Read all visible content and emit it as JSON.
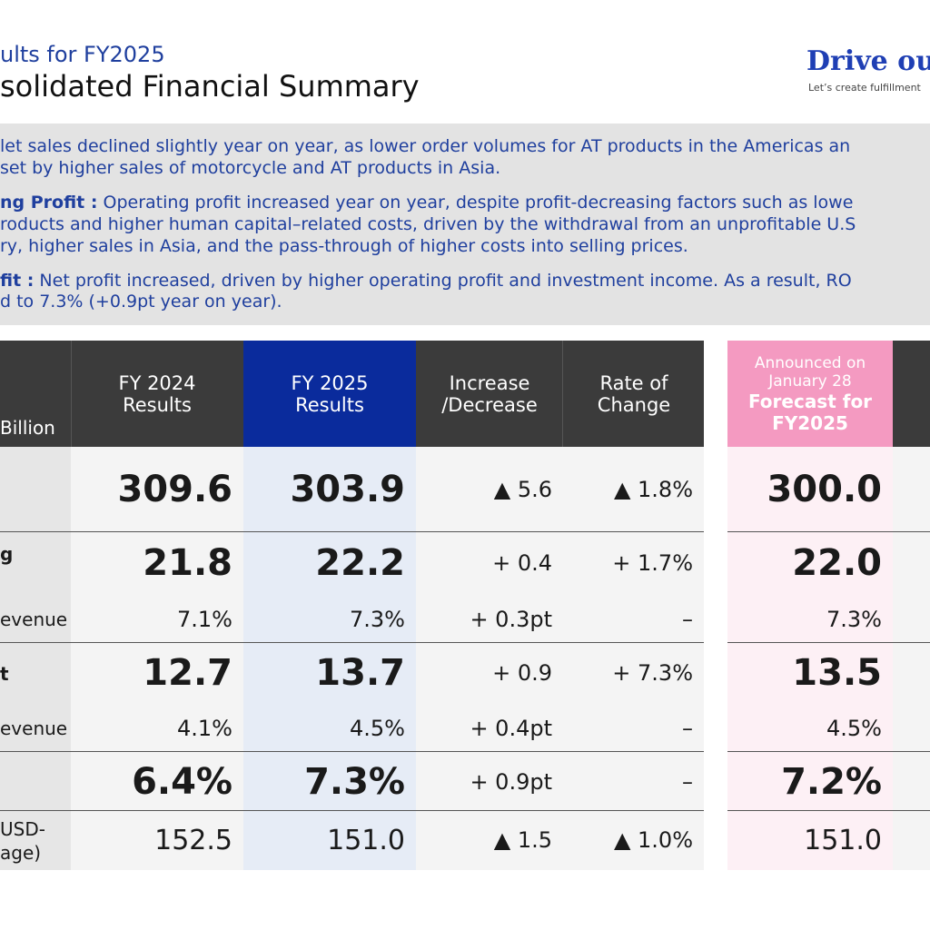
{
  "header": {
    "subtitle": "ults for FY2025",
    "title": "solidated Financial Summary",
    "brand": "Drive ou",
    "brand_tagline": "Let’s create fulfillment"
  },
  "summary": {
    "net_sales_line1": "let sales declined slightly year on year, as lower order volumes for AT products in the Americas an",
    "net_sales_line2": "set by higher sales of motorcycle and AT products in Asia.",
    "op_label": "ng Profit :",
    "op_line1": " Operating profit increased year on year, despite profit-decreasing factors such as lowe",
    "op_line2": "roducts and higher human capital–related costs, driven by the withdrawal from an unprofitable U.S",
    "op_line3": "ry, higher sales in Asia, and the pass-through of higher costs into selling prices.",
    "np_label": "fit :",
    "np_line1": " Net profit increased, driven by higher operating profit and investment income. As a result, RO",
    "np_line2": "d to 7.3% (+0.9pt year on year)."
  },
  "table": {
    "unit_label": "Billion",
    "columns": {
      "fy2024": [
        "FY 2024",
        "Results"
      ],
      "fy2025": [
        "FY 2025",
        "Results"
      ],
      "change": [
        "Increase",
        "/Decrease"
      ],
      "rate": [
        "Rate of",
        "Change"
      ],
      "forecast_note": [
        "Announced on",
        "January 28"
      ],
      "forecast_title": [
        "Forecast for",
        "FY2025"
      ]
    },
    "rows": [
      {
        "label": "",
        "fy2024": "309.6",
        "fy2025": "303.9",
        "change": "▲ 5.6",
        "rate": "▲ 1.8%",
        "forecast": "300.0"
      },
      {
        "label": "g",
        "fy2024": "21.8",
        "fy2025": "22.2",
        "change": "+ 0.4",
        "rate": "+ 1.7%",
        "forecast": "22.0"
      },
      {
        "label": "evenue",
        "fy2024": "7.1%",
        "fy2025": "7.3%",
        "change": "+ 0.3pt",
        "rate": "–",
        "forecast": "7.3%"
      },
      {
        "label": "t",
        "fy2024": "12.7",
        "fy2025": "13.7",
        "change": "+ 0.9",
        "rate": "+ 7.3%",
        "forecast": "13.5"
      },
      {
        "label": "evenue",
        "fy2024": "4.1%",
        "fy2025": "4.5%",
        "change": "+ 0.4pt",
        "rate": "–",
        "forecast": "4.5%"
      },
      {
        "label": "",
        "fy2024": "6.4%",
        "fy2025": "7.3%",
        "change": "+ 0.9pt",
        "rate": "–",
        "forecast": "7.2%"
      },
      {
        "label_line1": "USD-",
        "label_line2": "age)",
        "fy2024": "152.5",
        "fy2025": "151.0",
        "change": "▲ 1.5",
        "rate": "▲ 1.0%",
        "forecast": "151.0"
      }
    ]
  },
  "colors": {
    "brand_blue": "#1f3fb4",
    "header_dark": "#3b3b3b",
    "header_blue": "#0a2b9c",
    "header_pink": "#f49ac1",
    "summary_bg": "#e3e3e3"
  }
}
